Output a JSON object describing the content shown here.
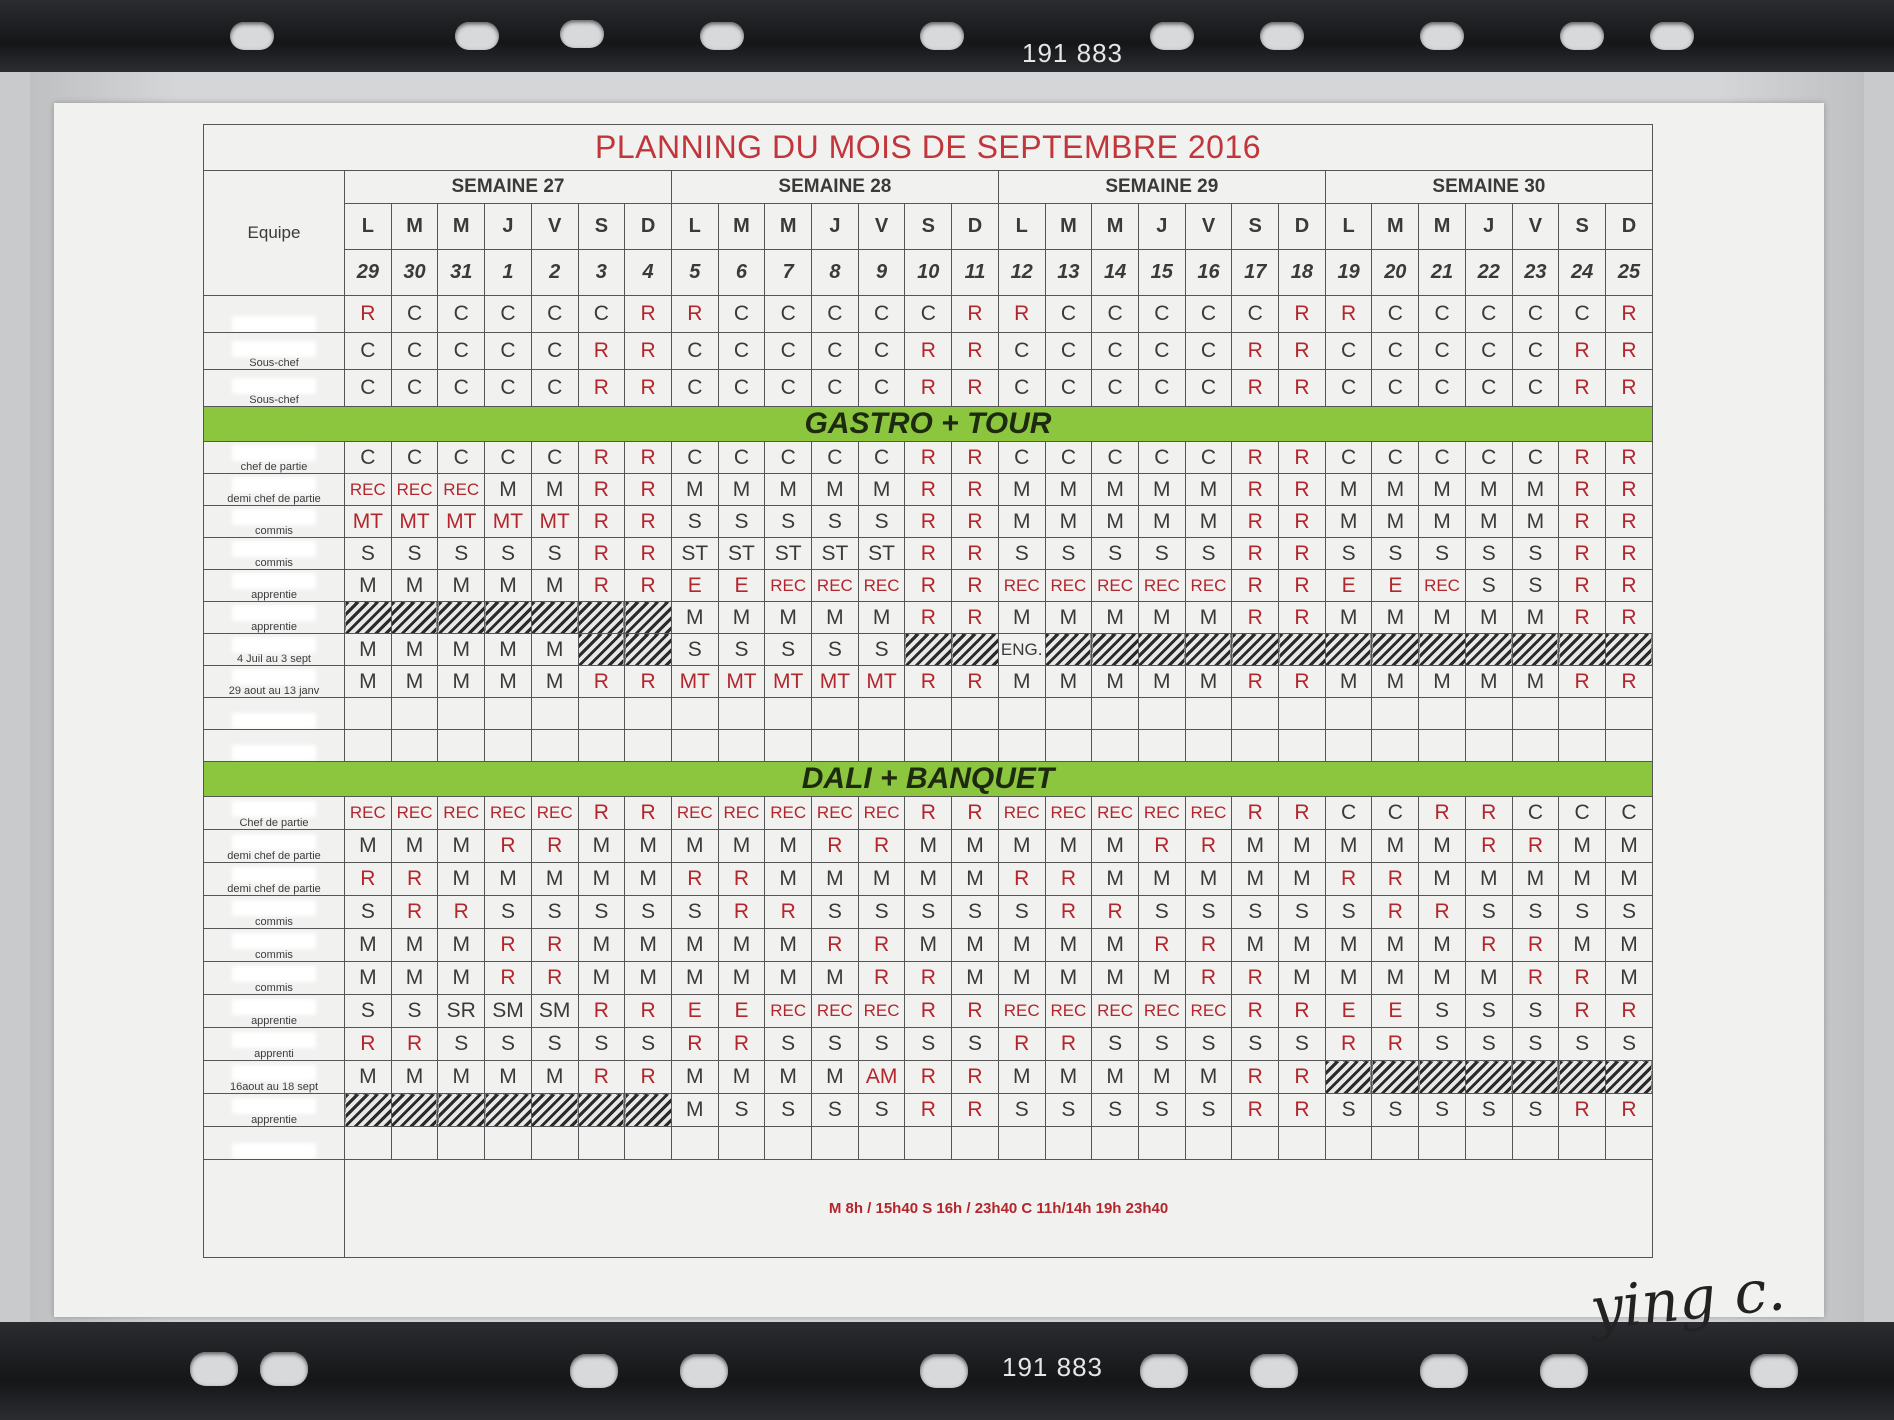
{
  "binder": {
    "number_top": "191 883",
    "number_bottom": "191 883"
  },
  "title": "PLANNING  DU MOIS DE SEPTEMBRE 2016",
  "equipe_label": "Equipe",
  "weeks": [
    "SEMAINE 27",
    "SEMAINE 28",
    "SEMAINE 29",
    "SEMAINE 30"
  ],
  "day_letters": [
    "L",
    "M",
    "M",
    "J",
    "V",
    "S",
    "D"
  ],
  "dates": [
    "29",
    "30",
    "31",
    "1",
    "2",
    "3",
    "4",
    "5",
    "6",
    "7",
    "8",
    "9",
    "10",
    "11",
    "12",
    "13",
    "14",
    "15",
    "16",
    "17",
    "18",
    "19",
    "20",
    "21",
    "22",
    "23",
    "24",
    "25"
  ],
  "colors": {
    "accent_red": "#b3262c",
    "section_green": "#8cc63f"
  },
  "top_rows": [
    {
      "role": "",
      "values": [
        "R",
        "C",
        "C",
        "C",
        "C",
        "C",
        "R",
        "R",
        "C",
        "C",
        "C",
        "C",
        "C",
        "R",
        "R",
        "C",
        "C",
        "C",
        "C",
        "C",
        "R",
        "R",
        "C",
        "C",
        "C",
        "C",
        "C",
        "R"
      ]
    },
    {
      "role": "Sous-chef",
      "values": [
        "C",
        "C",
        "C",
        "C",
        "C",
        "R",
        "R",
        "C",
        "C",
        "C",
        "C",
        "C",
        "R",
        "R",
        "C",
        "C",
        "C",
        "C",
        "C",
        "R",
        "R",
        "C",
        "C",
        "C",
        "C",
        "C",
        "R",
        "R"
      ]
    },
    {
      "role": "Sous-chef",
      "values": [
        "C",
        "C",
        "C",
        "C",
        "C",
        "R",
        "R",
        "C",
        "C",
        "C",
        "C",
        "C",
        "R",
        "R",
        "C",
        "C",
        "C",
        "C",
        "C",
        "R",
        "R",
        "C",
        "C",
        "C",
        "C",
        "C",
        "R",
        "R"
      ]
    }
  ],
  "sections": [
    {
      "title": "GASTRO + TOUR",
      "rows": [
        {
          "role": "chef de partie",
          "values": [
            "C",
            "C",
            "C",
            "C",
            "C",
            "R",
            "R",
            "C",
            "C",
            "C",
            "C",
            "C",
            "R",
            "R",
            "C",
            "C",
            "C",
            "C",
            "C",
            "R",
            "R",
            "C",
            "C",
            "C",
            "C",
            "C",
            "R",
            "R"
          ]
        },
        {
          "role": "demi chef de partie",
          "values": [
            "REC",
            "REC",
            "REC",
            "M",
            "M",
            "R",
            "R",
            "M",
            "M",
            "M",
            "M",
            "M",
            "R",
            "R",
            "M",
            "M",
            "M",
            "M",
            "M",
            "R",
            "R",
            "M",
            "M",
            "M",
            "M",
            "M",
            "R",
            "R"
          ]
        },
        {
          "role": "commis",
          "values": [
            "MT",
            "MT",
            "MT",
            "MT",
            "MT",
            "R",
            "R",
            "S",
            "S",
            "S",
            "S",
            "S",
            "R",
            "R",
            "M",
            "M",
            "M",
            "M",
            "M",
            "R",
            "R",
            "M",
            "M",
            "M",
            "M",
            "M",
            "R",
            "R"
          ]
        },
        {
          "role": "commis",
          "values": [
            "S",
            "S",
            "S",
            "S",
            "S",
            "R",
            "R",
            "ST",
            "ST",
            "ST",
            "ST",
            "ST",
            "R",
            "R",
            "S",
            "S",
            "S",
            "S",
            "S",
            "R",
            "R",
            "S",
            "S",
            "S",
            "S",
            "S",
            "R",
            "R"
          ]
        },
        {
          "role": "apprentie",
          "values": [
            "M",
            "M",
            "M",
            "M",
            "M",
            "R",
            "R",
            "E",
            "E",
            "REC",
            "REC",
            "REC",
            "R",
            "R",
            "REC",
            "REC",
            "REC",
            "REC",
            "REC",
            "R",
            "R",
            "E",
            "E",
            "REC",
            "S",
            "S",
            "R",
            "R"
          ]
        },
        {
          "role": "apprentie",
          "values": [
            null,
            null,
            null,
            null,
            null,
            null,
            null,
            "M",
            "M",
            "M",
            "M",
            "M",
            "R",
            "R",
            "M",
            "M",
            "M",
            "M",
            "M",
            "R",
            "R",
            "M",
            "M",
            "M",
            "M",
            "M",
            "R",
            "R"
          ]
        },
        {
          "role": "4 Juil au 3 sept",
          "values": [
            "M",
            "M",
            "M",
            "M",
            "M",
            null,
            null,
            "S",
            "S",
            "S",
            "S",
            "S",
            null,
            null,
            "ENG.",
            null,
            null,
            null,
            null,
            null,
            null,
            null,
            null,
            null,
            null,
            null,
            null,
            null
          ]
        },
        {
          "role": "29 aout au 13 janv",
          "values": [
            "M",
            "M",
            "M",
            "M",
            "M",
            "R",
            "R",
            "MT",
            "MT",
            "MT",
            "MT",
            "MT",
            "R",
            "R",
            "M",
            "M",
            "M",
            "M",
            "M",
            "R",
            "R",
            "M",
            "M",
            "M",
            "M",
            "M",
            "R",
            "R"
          ]
        },
        {
          "role": "",
          "values": [
            "",
            "",
            "",
            "",
            "",
            "",
            "",
            "",
            "",
            "",
            "",
            "",
            "",
            "",
            "",
            "",
            "",
            "",
            "",
            "",
            "",
            "",
            "",
            "",
            "",
            "",
            "",
            ""
          ]
        },
        {
          "role": "",
          "values": [
            "",
            "",
            "",
            "",
            "",
            "",
            "",
            "",
            "",
            "",
            "",
            "",
            "",
            "",
            "",
            "",
            "",
            "",
            "",
            "",
            "",
            "",
            "",
            "",
            "",
            "",
            "",
            ""
          ]
        }
      ]
    },
    {
      "title": "DALI + BANQUET",
      "rows": [
        {
          "role": "Chef de partie",
          "values": [
            "REC",
            "REC",
            "REC",
            "REC",
            "REC",
            "R",
            "R",
            "REC",
            "REC",
            "REC",
            "REC",
            "REC",
            "R",
            "R",
            "REC",
            "REC",
            "REC",
            "REC",
            "REC",
            "R",
            "R",
            "C",
            "C",
            "R",
            "R",
            "C",
            "C",
            "C"
          ]
        },
        {
          "role": "demi chef de partie",
          "values": [
            "M",
            "M",
            "M",
            "R",
            "R",
            "M",
            "M",
            "M",
            "M",
            "M",
            "R",
            "R",
            "M",
            "M",
            "M",
            "M",
            "M",
            "R",
            "R",
            "M",
            "M",
            "M",
            "M",
            "M",
            "R",
            "R",
            "M",
            "M"
          ]
        },
        {
          "role": "demi chef de partie",
          "values": [
            "R",
            "R",
            "M",
            "M",
            "M",
            "M",
            "M",
            "R",
            "R",
            "M",
            "M",
            "M",
            "M",
            "M",
            "R",
            "R",
            "M",
            "M",
            "M",
            "M",
            "M",
            "R",
            "R",
            "M",
            "M",
            "M",
            "M",
            "M"
          ]
        },
        {
          "role": "commis",
          "values": [
            "S",
            "R",
            "R",
            "S",
            "S",
            "S",
            "S",
            "S",
            "R",
            "R",
            "S",
            "S",
            "S",
            "S",
            "S",
            "R",
            "R",
            "S",
            "S",
            "S",
            "S",
            "S",
            "R",
            "R",
            "S",
            "S",
            "S",
            "S"
          ]
        },
        {
          "role": "commis",
          "values": [
            "M",
            "M",
            "M",
            "R",
            "R",
            "M",
            "M",
            "M",
            "M",
            "M",
            "R",
            "R",
            "M",
            "M",
            "M",
            "M",
            "M",
            "R",
            "R",
            "M",
            "M",
            "M",
            "M",
            "M",
            "R",
            "R",
            "M",
            "M"
          ]
        },
        {
          "role": "commis",
          "values": [
            "M",
            "M",
            "M",
            "R",
            "R",
            "M",
            "M",
            "M",
            "M",
            "M",
            "M",
            "R",
            "R",
            "M",
            "M",
            "M",
            "M",
            "M",
            "R",
            "R",
            "M",
            "M",
            "M",
            "M",
            "M",
            "R",
            "R",
            "M"
          ]
        },
        {
          "role": "apprentie",
          "values": [
            "S",
            "S",
            "SR",
            "SM",
            "SM",
            "R",
            "R",
            "E",
            "E",
            "REC",
            "REC",
            "REC",
            "R",
            "R",
            "REC",
            "REC",
            "REC",
            "REC",
            "REC",
            "R",
            "R",
            "E",
            "E",
            "S",
            "S",
            "S",
            "R",
            "R"
          ]
        },
        {
          "role": "apprenti",
          "values": [
            "R",
            "R",
            "S",
            "S",
            "S",
            "S",
            "S",
            "R",
            "R",
            "S",
            "S",
            "S",
            "S",
            "S",
            "R",
            "R",
            "S",
            "S",
            "S",
            "S",
            "S",
            "R",
            "R",
            "S",
            "S",
            "S",
            "S",
            "S"
          ]
        },
        {
          "role": "16aout au 18 sept",
          "values": [
            "M",
            "M",
            "M",
            "M",
            "M",
            "R",
            "R",
            "M",
            "M",
            "M",
            "M",
            "AM",
            "R",
            "R",
            "M",
            "M",
            "M",
            "M",
            "M",
            "R",
            "R",
            null,
            null,
            null,
            null,
            null,
            null,
            null
          ]
        },
        {
          "role": "apprentie",
          "values": [
            null,
            null,
            null,
            null,
            null,
            null,
            null,
            "M",
            "S",
            "S",
            "S",
            "S",
            "R",
            "R",
            "S",
            "S",
            "S",
            "S",
            "S",
            "R",
            "R",
            "S",
            "S",
            "S",
            "S",
            "S",
            "R",
            "R"
          ]
        },
        {
          "role": "",
          "values": [
            "",
            "",
            "",
            "",
            "",
            "",
            "",
            "",
            "",
            "",
            "",
            "",
            "",
            "",
            "",
            "",
            "",
            "",
            "",
            "",
            "",
            "",
            "",
            "",
            "",
            "",
            "",
            ""
          ]
        }
      ]
    }
  ],
  "legend": "M 8h / 15h40  S 16h / 23h40  C 11h/14h 19h 23h40",
  "signature": "ying c."
}
